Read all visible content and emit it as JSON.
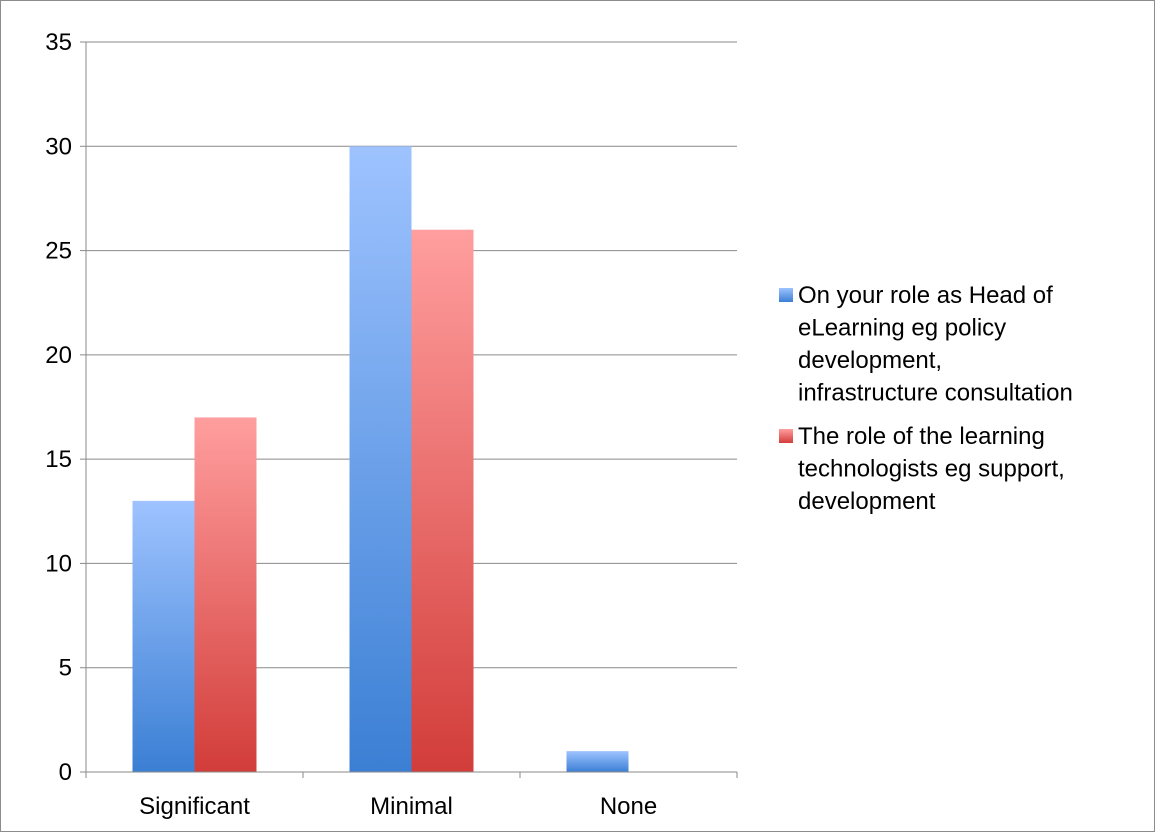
{
  "chart_data": {
    "type": "bar",
    "title": "",
    "xlabel": "",
    "ylabel": "",
    "categories": [
      "Significant",
      "Minimal",
      "None"
    ],
    "series": [
      {
        "name": "On your role as Head of eLearning eg policy development, infrastructure consultation",
        "legend_lines": [
          "On your role as Head of",
          "eLearning eg policy",
          "development,",
          "infrastructure consultation"
        ],
        "values": [
          13,
          30,
          1
        ],
        "color_top": "#9ec3ff",
        "color_bottom": "#3b7fd4"
      },
      {
        "name": "The role of the learning technologists eg support, development",
        "legend_lines": [
          "The role of the learning",
          "technologists eg support,",
          "development"
        ],
        "values": [
          17,
          26,
          0
        ],
        "color_top": "#ff9e9e",
        "color_bottom": "#d23d3a"
      }
    ],
    "ylim": [
      0,
      35
    ],
    "yticks": [
      0,
      5,
      10,
      15,
      20,
      25,
      30,
      35
    ],
    "grid": true,
    "legend_position": "right"
  }
}
